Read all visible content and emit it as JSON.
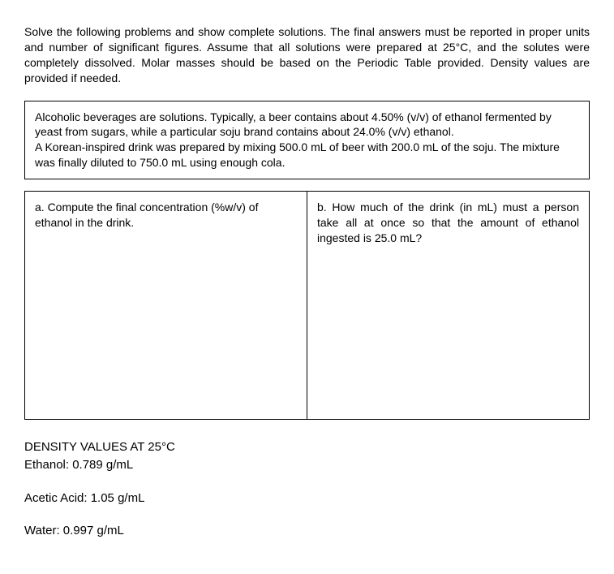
{
  "intro": "Solve the following problems and show complete solutions. The final answers must be reported in proper units and number of significant figures. Assume that all solutions were prepared at 25°C, and the solutes were completely dissolved. Molar masses should be based on the Periodic Table provided. Density values are provided if needed.",
  "context": {
    "p1": "Alcoholic beverages are solutions. Typically, a beer contains about 4.50% (v/v) of ethanol fermented  by yeast from sugars, while a particular soju brand contains about 24.0% (v/v) ethanol.",
    "p2": "A Korean-inspired drink was prepared by mixing 500.0 mL of beer with 200.0 mL of the soju. The mixture was finally diluted to 750.0 mL using enough cola."
  },
  "questions": {
    "a": "a. Compute the final concentration (%w/v) of ethanol in the drink.",
    "b": "b. How much of the drink (in mL) must a person  take all at once so that the amount of ethanol  ingested is 25.0 mL?"
  },
  "density": {
    "header": "DENSITY VALUES AT 25°C",
    "ethanol": "Ethanol: 0.789 g/mL",
    "acetic": "Acetic Acid: 1.05 g/mL",
    "water": "Water: 0.997 g/mL"
  }
}
